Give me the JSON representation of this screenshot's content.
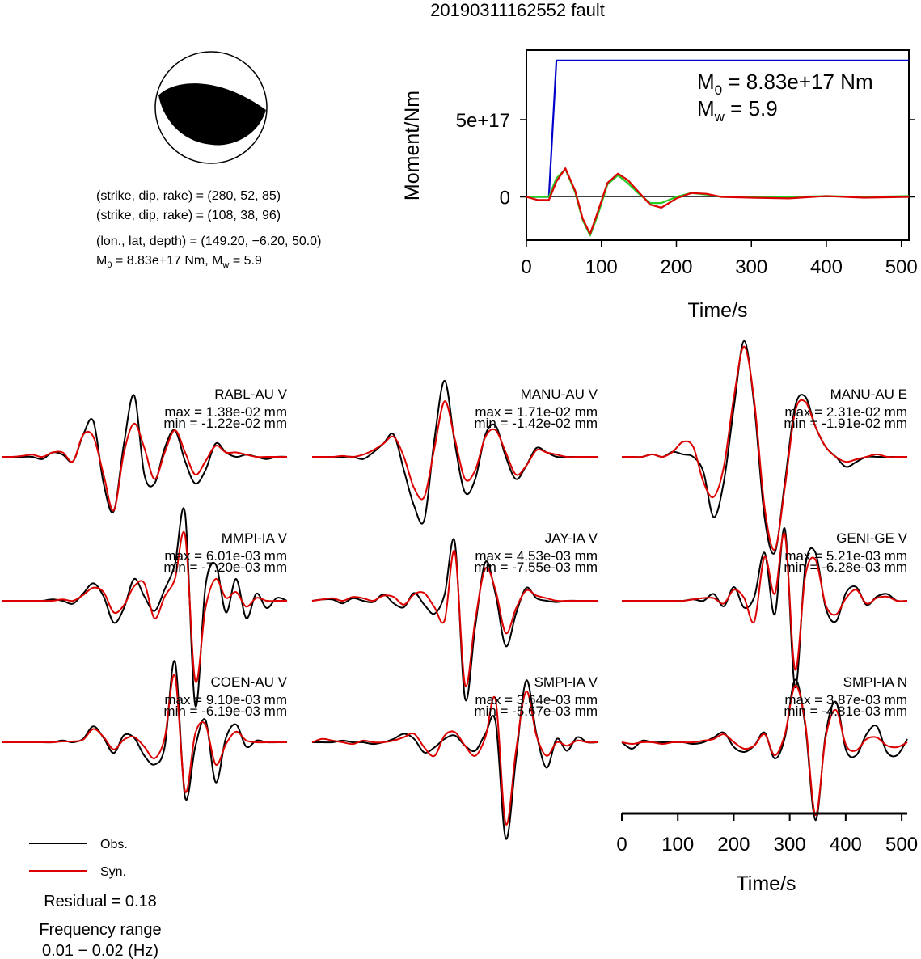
{
  "chart_data": [
    {
      "type": "line",
      "title": "20190311162552 fault",
      "xlabel": "Time/s",
      "ylabel": "Moment/Nm",
      "xlim": [
        0,
        510
      ],
      "ylim": [
        -2.8e+17,
        9.5e+17
      ],
      "xticks": [
        "0",
        "100",
        "200",
        "300",
        "400",
        "500"
      ],
      "yticks": [
        "0",
        "5e+17"
      ],
      "annotation": {
        "m0_text": "M0 = 8.83e+17 Nm",
        "mw_text": "Mw = 5.9"
      },
      "series": [
        {
          "color": "#0000cc",
          "x": [
            0,
            30,
            40,
            510
          ],
          "y": [
            0,
            0,
            8.83e+17,
            8.83e+17
          ]
        },
        {
          "color": "#22cc22",
          "x": [
            0,
            15,
            30,
            40,
            52,
            65,
            75,
            85,
            95,
            108,
            122,
            135,
            150,
            165,
            180,
            200,
            220,
            240,
            260,
            300,
            350,
            400,
            450,
            510
          ],
          "y": [
            0,
            0,
            0,
            1.2e+17,
            1.8e+17,
            3e+16,
            -1.5e+17,
            -2.5e+17,
            -1.2e+17,
            8e+16,
            1.4e+17,
            9e+16,
            2e+16,
            -4e+16,
            -4e+16,
            0,
            2.5e+16,
            1.5e+16,
            0,
            0,
            0,
            5000000000000000.0,
            0,
            5000000000000000.0
          ]
        },
        {
          "color": "#dd0000",
          "x": [
            0,
            15,
            30,
            40,
            52,
            65,
            75,
            85,
            95,
            108,
            122,
            135,
            150,
            165,
            180,
            200,
            220,
            240,
            260,
            300,
            350,
            400,
            450,
            510
          ],
          "y": [
            0,
            -2e+16,
            -2e+16,
            1e+17,
            1.85e+17,
            4e+16,
            -1.4e+17,
            -2.4e+17,
            -1e+17,
            9e+16,
            1.5e+17,
            1.1e+17,
            3e+16,
            -5e+16,
            -7e+16,
            -1e+16,
            2.5e+16,
            2e+16,
            0,
            -5000000000000000.0,
            -1e+16,
            5000000000000000.0,
            -5000000000000000.0,
            0
          ]
        }
      ]
    },
    {
      "type": "line",
      "xlabel": "Time/s",
      "xlim": [
        0,
        510
      ],
      "xticks": [
        "0",
        "100",
        "200",
        "300",
        "400",
        "500"
      ],
      "legend": [
        "Obs.",
        "Syn."
      ],
      "stations": [
        {
          "name": "RABL-AU V",
          "max": "max = 1.38e-02 mm",
          "min": "min = -1.22e-02 mm",
          "ymax": 1.38,
          "ymin": -1.22,
          "obs": [
            0,
            0,
            0,
            0,
            -0.05,
            0.1,
            0.05,
            -0.1,
            0.5,
            0.8,
            -0.6,
            -1.22,
            0.3,
            1.38,
            -0.4,
            -0.6,
            0.2,
            0.6,
            -0.1,
            -0.6,
            -0.3,
            0.3,
            0.1,
            0,
            0.05,
            0,
            -0.05,
            0,
            0
          ],
          "syn": [
            0,
            0,
            0.02,
            0.05,
            0,
            0.1,
            0.1,
            -0.1,
            0.5,
            0.45,
            -0.4,
            -1.2,
            0.1,
            0.75,
            0.2,
            -0.5,
            0.1,
            0.6,
            0.1,
            -0.4,
            -0.1,
            0.25,
            0.1,
            0.1,
            0.05,
            0,
            0,
            0,
            0
          ]
        },
        {
          "name": "MANU-AU V",
          "max": "max = 1.71e-02 mm",
          "min": "min = -1.42e-02 mm",
          "ymax": 1.71,
          "ymin": -1.42,
          "obs": [
            0,
            0,
            0,
            0,
            0,
            -0.05,
            0.1,
            0.3,
            0.5,
            -0.3,
            -1.1,
            -1.42,
            0.4,
            1.71,
            0.3,
            -0.8,
            -0.5,
            0.5,
            0.7,
            0,
            -0.5,
            -0.2,
            0.2,
            0.1,
            0,
            0,
            0,
            0,
            0
          ],
          "syn": [
            0,
            0,
            0,
            0.02,
            0,
            0.05,
            0.15,
            0.3,
            0.45,
            0,
            -0.7,
            -0.9,
            0.2,
            1.25,
            0.4,
            -0.5,
            -0.3,
            0.45,
            0.6,
            0.1,
            -0.4,
            -0.2,
            0.15,
            0.1,
            0.05,
            0,
            0,
            0,
            0
          ]
        },
        {
          "name": "MANU-AU E",
          "max": "max = 2.31e-02 mm",
          "min": "min = -1.91e-02 mm",
          "ymax": 2.31,
          "ymin": -1.91,
          "obs": [
            0,
            0,
            0,
            0.05,
            0,
            0.1,
            0.05,
            0,
            -0.3,
            -1.2,
            -0.5,
            1.0,
            2.31,
            1.0,
            -1.2,
            -1.91,
            -0.5,
            1.0,
            1.2,
            0.6,
            0.2,
            0,
            -0.2,
            -0.1,
            0,
            0,
            0,
            0,
            0
          ],
          "syn": [
            0,
            0,
            0,
            0.05,
            0,
            0.1,
            0.3,
            0.2,
            -0.5,
            -0.8,
            -0.2,
            1.2,
            2.2,
            1.1,
            -1.0,
            -1.85,
            -0.6,
            0.9,
            1.1,
            0.6,
            0.2,
            0,
            -0.1,
            -0.05,
            0,
            0.05,
            0,
            0,
            0
          ]
        },
        {
          "name": "MMPI-IA V",
          "max": "max = 6.01e-03 mm",
          "min": "min = -7.20e-03 mm",
          "ymax": 6.01,
          "ymin": -7.2,
          "obs": [
            0,
            0,
            0,
            0,
            0,
            0.1,
            0,
            -0.2,
            0.5,
            1.2,
            0.3,
            -1.5,
            -0.5,
            1.5,
            0.3,
            -0.7,
            0.8,
            2.5,
            6.01,
            -7.2,
            1.0,
            2.5,
            -0.8,
            1.5,
            -1.2,
            0.5,
            -0.5,
            0.2,
            0
          ],
          "syn": [
            0,
            0,
            0,
            0,
            0,
            0,
            0.1,
            0,
            0.4,
            0.9,
            0.6,
            -0.8,
            -0.3,
            1.0,
            1.2,
            -1.2,
            0.3,
            1.5,
            4.5,
            -5.5,
            -0.5,
            1.5,
            0.2,
            0.6,
            -0.4,
            0.2,
            0,
            0,
            0
          ]
        },
        {
          "name": "JAY-IA V",
          "max": "max = 4.53e-03 mm",
          "min": "min = -7.55e-03 mm",
          "ymax": 4.53,
          "ymin": -7.55,
          "obs": [
            0,
            0.1,
            0.1,
            -0.2,
            0.2,
            0,
            -0.1,
            0.5,
            -0.2,
            -0.5,
            0.6,
            -0.3,
            -1.0,
            0.5,
            4.53,
            -7.55,
            -2.0,
            3.0,
            0.5,
            -3.5,
            -1.0,
            1.0,
            0.2,
            0,
            -0.1,
            0,
            0,
            0,
            0
          ],
          "syn": [
            0,
            0.1,
            0.2,
            0,
            0.3,
            0.2,
            0,
            0.4,
            0.3,
            -0.3,
            0.5,
            0.6,
            -0.5,
            -1.5,
            3.8,
            -6.5,
            -1.5,
            2.5,
            0.8,
            -2.5,
            -0.6,
            0.8,
            0.4,
            0.2,
            0,
            0,
            0,
            0,
            0
          ]
        },
        {
          "name": "GENI-GE V",
          "max": "max = 5.21e-03 mm",
          "min": "min = -6.28e-03 mm",
          "ymax": 5.21,
          "ymin": -6.28,
          "obs": [
            0,
            0,
            0,
            0,
            0,
            0,
            0,
            0.1,
            0,
            0.5,
            -0.4,
            1.0,
            -0.5,
            0.3,
            3.5,
            -1.0,
            5.21,
            -6.28,
            2.5,
            3.5,
            -0.5,
            -1.5,
            0.6,
            1.0,
            -0.3,
            0.3,
            0.5,
            0,
            0
          ],
          "syn": [
            0,
            0,
            0,
            0,
            0,
            0,
            0,
            0.1,
            0.2,
            0.2,
            -0.2,
            0.8,
            0.2,
            -1.5,
            3.2,
            0.5,
            4.8,
            -5.0,
            1.8,
            3.0,
            -0.3,
            -1.0,
            0.2,
            0.8,
            -0.2,
            0.2,
            0.3,
            0,
            0
          ]
        },
        {
          "name": "COEN-AU V",
          "max": "max = 9.10e-03 mm",
          "min": "min = -6.19e-03 mm",
          "ymax": 9.1,
          "ymin": -6.19,
          "obs": [
            0,
            0,
            0,
            0,
            0,
            0,
            0.2,
            0,
            0.4,
            1.8,
            0.5,
            -1.2,
            0.8,
            0.5,
            -1.5,
            -2.5,
            -0.5,
            9.1,
            -6.19,
            -0.5,
            2.5,
            -4.5,
            0.5,
            2.0,
            -0.5,
            0.2,
            0,
            0,
            0
          ],
          "syn": [
            0,
            0,
            0,
            0,
            0,
            0,
            0.1,
            0.1,
            0.3,
            1.5,
            0.6,
            -0.8,
            0.3,
            0.6,
            -0.5,
            -1.8,
            0.5,
            7.5,
            -5.5,
            1.0,
            2.0,
            -2.5,
            -0.2,
            1.2,
            0.2,
            0,
            0,
            0,
            0
          ]
        },
        {
          "name": "SMPI-IA V",
          "max": "max = 3.64e-03 mm",
          "min": "min = -5.67e-03 mm",
          "ymax": 3.64,
          "ymin": -5.67,
          "obs": [
            0,
            0,
            0,
            0.1,
            0,
            0,
            -0.1,
            0,
            0.2,
            0.5,
            0.2,
            -0.6,
            -0.3,
            0.2,
            0.4,
            -0.2,
            -0.5,
            0.5,
            1.2,
            -5.67,
            -1.0,
            3.64,
            0.5,
            -1.5,
            0.2,
            -0.5,
            0.3,
            0,
            0
          ],
          "syn": [
            0,
            0.2,
            0.1,
            0,
            -0.1,
            0.1,
            0,
            0,
            0.1,
            0.3,
            0.5,
            -0.3,
            -0.8,
            0.4,
            0.6,
            -0.2,
            -0.8,
            0.3,
            2.5,
            -4.8,
            -0.5,
            3.0,
            0.4,
            -0.8,
            0,
            -0.2,
            0.1,
            0,
            0
          ]
        },
        {
          "name": "SMPI-IA N",
          "max": "max = 3.87e-03 mm",
          "min": "min = -4.81e-03 mm",
          "ymax": 3.87,
          "ymin": -4.81,
          "obs": [
            0,
            -0.4,
            0.1,
            0,
            0,
            0,
            0,
            -0.1,
            0,
            0.3,
            0.6,
            -0.3,
            -0.6,
            -0.2,
            0.6,
            -1.0,
            0.3,
            3.87,
            1.0,
            -4.81,
            0.5,
            2.5,
            -0.5,
            -0.8,
            0.5,
            1.0,
            -0.6,
            -0.8,
            0.2
          ],
          "syn": [
            0,
            -0.1,
            0,
            0,
            -0.1,
            0,
            0,
            0,
            0.1,
            0.2,
            0.5,
            0,
            -0.4,
            -0.2,
            0.5,
            -0.8,
            0.5,
            3.5,
            1.2,
            -4.5,
            0.3,
            2.0,
            -0.2,
            -0.5,
            0.2,
            0.3,
            -0.2,
            -0.3,
            0
          ]
        }
      ]
    }
  ],
  "title": "20190311162552 fault",
  "info": {
    "sdr1": "(strike, dip, rake) = (280, 52, 85)",
    "sdr2": "(strike, dip, rake) = (108, 38, 96)",
    "loc": "(lon., lat, depth) = (149.20, −6.20, 50.0)",
    "m0_prefix": "M",
    "m0_rest": " = 8.83e+17 Nm, M",
    "mw_rest": " = 5.9",
    "sub0": "0",
    "subw": "w"
  },
  "moment_plot": {
    "m0_prefix": "M",
    "m0_rest": " = 8.83e+17 Nm",
    "mw_prefix": "M",
    "mw_rest": " = 5.9",
    "sub0": "0",
    "subw": "w"
  },
  "legend": {
    "obs": "Obs.",
    "syn": "Syn."
  },
  "residual": "Residual = 0.18",
  "freq_title": "Frequency range",
  "freq_range": "0.01 − 0.02 (Hz)",
  "colors": {
    "obs": "#000000",
    "syn": "#dd0000",
    "moment": "#0000cc",
    "fit": "#22cc22"
  }
}
